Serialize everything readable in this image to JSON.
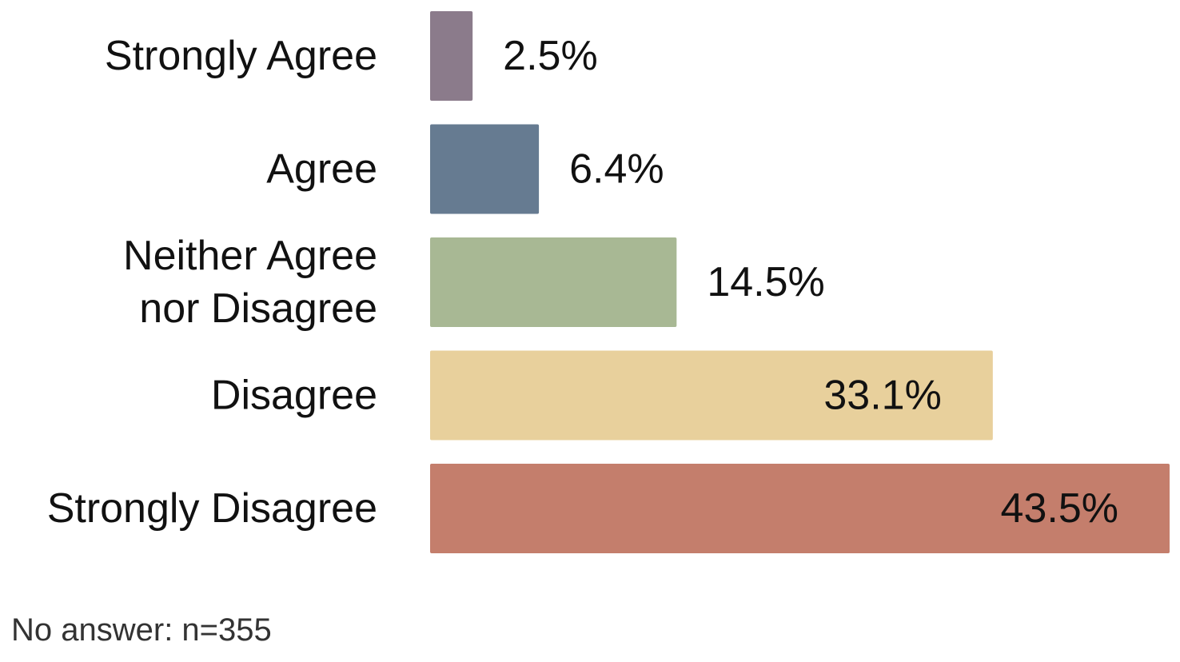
{
  "chart_data": {
    "type": "bar",
    "orientation": "horizontal",
    "categories": [
      "Strongly Agree",
      "Agree",
      "Neither Agree nor Disagree",
      "Disagree",
      "Strongly Disagree"
    ],
    "category_lines": [
      [
        "Strongly Agree"
      ],
      [
        "Agree"
      ],
      [
        "Neither Agree",
        "nor Disagree"
      ],
      [
        "Disagree"
      ],
      [
        "Strongly Disagree"
      ]
    ],
    "values": [
      2.5,
      6.4,
      14.5,
      33.1,
      43.5
    ],
    "value_labels": [
      "2.5%",
      "6.4%",
      "14.5%",
      "33.1%",
      "43.5%"
    ],
    "colors": [
      "#8b7b8b",
      "#667b91",
      "#a8b894",
      "#e8d09c",
      "#c47e6c"
    ],
    "xlim": [
      0,
      43.5
    ],
    "grid": false,
    "legend": "none"
  },
  "footnote": "No answer: n=355"
}
